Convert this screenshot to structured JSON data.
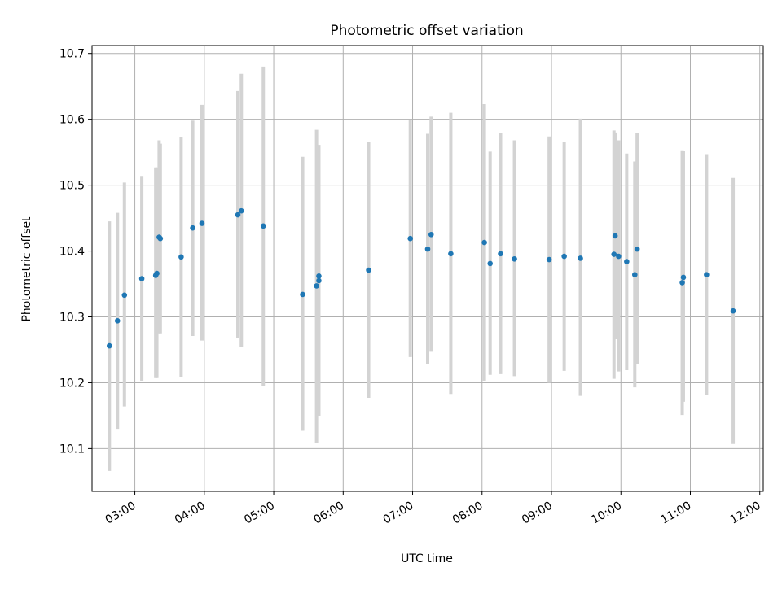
{
  "chart_data": {
    "type": "scatter",
    "title": "Photometric offset variation",
    "xlabel": "UTC time",
    "ylabel": "Photometric offset",
    "grid": true,
    "legend": "none",
    "x_axis_kind": "time",
    "xlim": [
      "02:23",
      "12:03"
    ],
    "ylim": [
      10.035,
      10.712
    ],
    "x_ticks": [
      "03:00",
      "04:00",
      "05:00",
      "06:00",
      "07:00",
      "08:00",
      "09:00",
      "10:00",
      "11:00",
      "12:00"
    ],
    "y_ticks": [
      10.1,
      10.2,
      10.3,
      10.4,
      10.5,
      10.6,
      10.7
    ],
    "colors": {
      "marker": "#1f77b4",
      "error_bar": "#d3d3d3",
      "grid": "#b0b0b0"
    },
    "series": [
      {
        "points": [
          {
            "x": "02:38",
            "y": 10.256,
            "lo": 10.066,
            "hi": 10.445
          },
          {
            "x": "02:45",
            "y": 10.294,
            "lo": 10.13,
            "hi": 10.458
          },
          {
            "x": "02:51",
            "y": 10.333,
            "lo": 10.164,
            "hi": 10.504
          },
          {
            "x": "03:06",
            "y": 10.358,
            "lo": 10.203,
            "hi": 10.514
          },
          {
            "x": "03:18",
            "y": 10.363,
            "lo": 10.207,
            "hi": 10.527
          },
          {
            "x": "03:19",
            "y": 10.366,
            "lo": 10.207,
            "hi": 10.527
          },
          {
            "x": "03:21",
            "y": 10.421,
            "lo": 10.275,
            "hi": 10.568
          },
          {
            "x": "03:22",
            "y": 10.419,
            "lo": 10.275,
            "hi": 10.563
          },
          {
            "x": "03:40",
            "y": 10.391,
            "lo": 10.209,
            "hi": 10.573
          },
          {
            "x": "03:50",
            "y": 10.435,
            "lo": 10.271,
            "hi": 10.598
          },
          {
            "x": "03:58",
            "y": 10.442,
            "lo": 10.264,
            "hi": 10.622
          },
          {
            "x": "04:29",
            "y": 10.455,
            "lo": 10.268,
            "hi": 10.643
          },
          {
            "x": "04:32",
            "y": 10.461,
            "lo": 10.254,
            "hi": 10.669
          },
          {
            "x": "04:51",
            "y": 10.438,
            "lo": 10.195,
            "hi": 10.68
          },
          {
            "x": "05:25",
            "y": 10.334,
            "lo": 10.127,
            "hi": 10.543
          },
          {
            "x": "05:37",
            "y": 10.347,
            "lo": 10.109,
            "hi": 10.584
          },
          {
            "x": "05:39",
            "y": 10.355,
            "lo": 10.15,
            "hi": 10.561
          },
          {
            "x": "05:39",
            "y": 10.362,
            "lo": 10.15,
            "hi": 10.561
          },
          {
            "x": "06:22",
            "y": 10.371,
            "lo": 10.177,
            "hi": 10.565
          },
          {
            "x": "06:58",
            "y": 10.419,
            "lo": 10.239,
            "hi": 10.599
          },
          {
            "x": "07:13",
            "y": 10.403,
            "lo": 10.229,
            "hi": 10.578
          },
          {
            "x": "07:16",
            "y": 10.425,
            "lo": 10.247,
            "hi": 10.604
          },
          {
            "x": "07:33",
            "y": 10.396,
            "lo": 10.183,
            "hi": 10.61
          },
          {
            "x": "08:02",
            "y": 10.413,
            "lo": 10.203,
            "hi": 10.623
          },
          {
            "x": "08:07",
            "y": 10.381,
            "lo": 10.212,
            "hi": 10.551
          },
          {
            "x": "08:16",
            "y": 10.396,
            "lo": 10.213,
            "hi": 10.579
          },
          {
            "x": "08:28",
            "y": 10.388,
            "lo": 10.21,
            "hi": 10.568
          },
          {
            "x": "08:58",
            "y": 10.387,
            "lo": 10.2,
            "hi": 10.574
          },
          {
            "x": "09:11",
            "y": 10.392,
            "lo": 10.218,
            "hi": 10.566
          },
          {
            "x": "09:25",
            "y": 10.389,
            "lo": 10.18,
            "hi": 10.601
          },
          {
            "x": "09:54",
            "y": 10.395,
            "lo": 10.206,
            "hi": 10.583
          },
          {
            "x": "09:55",
            "y": 10.423,
            "lo": 10.266,
            "hi": 10.58
          },
          {
            "x": "09:58",
            "y": 10.392,
            "lo": 10.217,
            "hi": 10.568
          },
          {
            "x": "10:05",
            "y": 10.384,
            "lo": 10.219,
            "hi": 10.548
          },
          {
            "x": "10:12",
            "y": 10.364,
            "lo": 10.193,
            "hi": 10.536
          },
          {
            "x": "10:14",
            "y": 10.403,
            "lo": 10.228,
            "hi": 10.579
          },
          {
            "x": "10:53",
            "y": 10.352,
            "lo": 10.151,
            "hi": 10.553
          },
          {
            "x": "10:54",
            "y": 10.36,
            "lo": 10.171,
            "hi": 10.552
          },
          {
            "x": "11:14",
            "y": 10.364,
            "lo": 10.182,
            "hi": 10.547
          },
          {
            "x": "11:37",
            "y": 10.309,
            "lo": 10.107,
            "hi": 10.511
          }
        ]
      }
    ]
  }
}
